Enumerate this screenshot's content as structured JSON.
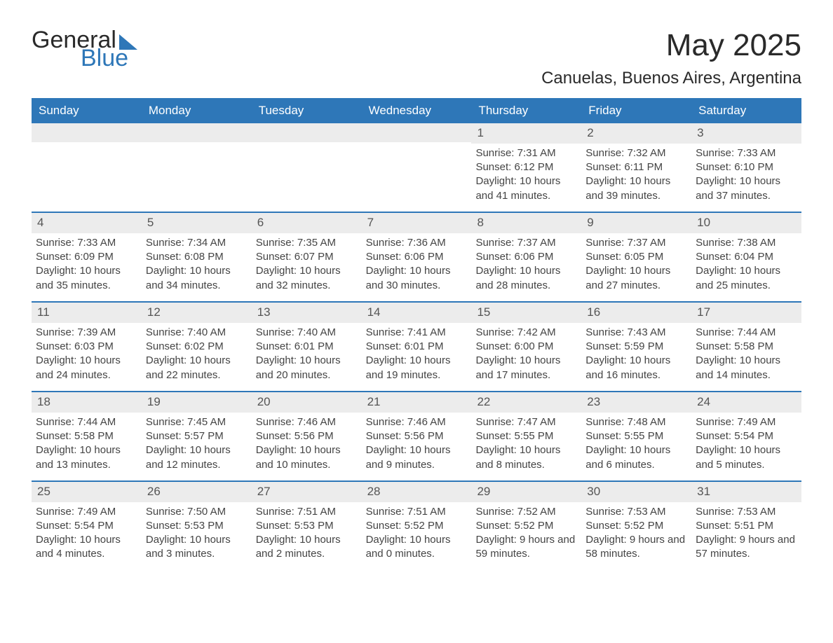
{
  "logo": {
    "text1": "General",
    "text2": "Blue"
  },
  "title": "May 2025",
  "location": "Canuelas, Buenos Aires, Argentina",
  "colors": {
    "header_bg": "#2e77b8",
    "header_text": "#ffffff",
    "daynum_bg": "#ececec",
    "border": "#2e77b8",
    "text": "#444444"
  },
  "weekdays": [
    "Sunday",
    "Monday",
    "Tuesday",
    "Wednesday",
    "Thursday",
    "Friday",
    "Saturday"
  ],
  "weeks": [
    [
      {
        "empty": true
      },
      {
        "empty": true
      },
      {
        "empty": true
      },
      {
        "empty": true
      },
      {
        "n": "1",
        "sunrise": "Sunrise: 7:31 AM",
        "sunset": "Sunset: 6:12 PM",
        "daylight": "Daylight: 10 hours and 41 minutes."
      },
      {
        "n": "2",
        "sunrise": "Sunrise: 7:32 AM",
        "sunset": "Sunset: 6:11 PM",
        "daylight": "Daylight: 10 hours and 39 minutes."
      },
      {
        "n": "3",
        "sunrise": "Sunrise: 7:33 AM",
        "sunset": "Sunset: 6:10 PM",
        "daylight": "Daylight: 10 hours and 37 minutes."
      }
    ],
    [
      {
        "n": "4",
        "sunrise": "Sunrise: 7:33 AM",
        "sunset": "Sunset: 6:09 PM",
        "daylight": "Daylight: 10 hours and 35 minutes."
      },
      {
        "n": "5",
        "sunrise": "Sunrise: 7:34 AM",
        "sunset": "Sunset: 6:08 PM",
        "daylight": "Daylight: 10 hours and 34 minutes."
      },
      {
        "n": "6",
        "sunrise": "Sunrise: 7:35 AM",
        "sunset": "Sunset: 6:07 PM",
        "daylight": "Daylight: 10 hours and 32 minutes."
      },
      {
        "n": "7",
        "sunrise": "Sunrise: 7:36 AM",
        "sunset": "Sunset: 6:06 PM",
        "daylight": "Daylight: 10 hours and 30 minutes."
      },
      {
        "n": "8",
        "sunrise": "Sunrise: 7:37 AM",
        "sunset": "Sunset: 6:06 PM",
        "daylight": "Daylight: 10 hours and 28 minutes."
      },
      {
        "n": "9",
        "sunrise": "Sunrise: 7:37 AM",
        "sunset": "Sunset: 6:05 PM",
        "daylight": "Daylight: 10 hours and 27 minutes."
      },
      {
        "n": "10",
        "sunrise": "Sunrise: 7:38 AM",
        "sunset": "Sunset: 6:04 PM",
        "daylight": "Daylight: 10 hours and 25 minutes."
      }
    ],
    [
      {
        "n": "11",
        "sunrise": "Sunrise: 7:39 AM",
        "sunset": "Sunset: 6:03 PM",
        "daylight": "Daylight: 10 hours and 24 minutes."
      },
      {
        "n": "12",
        "sunrise": "Sunrise: 7:40 AM",
        "sunset": "Sunset: 6:02 PM",
        "daylight": "Daylight: 10 hours and 22 minutes."
      },
      {
        "n": "13",
        "sunrise": "Sunrise: 7:40 AM",
        "sunset": "Sunset: 6:01 PM",
        "daylight": "Daylight: 10 hours and 20 minutes."
      },
      {
        "n": "14",
        "sunrise": "Sunrise: 7:41 AM",
        "sunset": "Sunset: 6:01 PM",
        "daylight": "Daylight: 10 hours and 19 minutes."
      },
      {
        "n": "15",
        "sunrise": "Sunrise: 7:42 AM",
        "sunset": "Sunset: 6:00 PM",
        "daylight": "Daylight: 10 hours and 17 minutes."
      },
      {
        "n": "16",
        "sunrise": "Sunrise: 7:43 AM",
        "sunset": "Sunset: 5:59 PM",
        "daylight": "Daylight: 10 hours and 16 minutes."
      },
      {
        "n": "17",
        "sunrise": "Sunrise: 7:44 AM",
        "sunset": "Sunset: 5:58 PM",
        "daylight": "Daylight: 10 hours and 14 minutes."
      }
    ],
    [
      {
        "n": "18",
        "sunrise": "Sunrise: 7:44 AM",
        "sunset": "Sunset: 5:58 PM",
        "daylight": "Daylight: 10 hours and 13 minutes."
      },
      {
        "n": "19",
        "sunrise": "Sunrise: 7:45 AM",
        "sunset": "Sunset: 5:57 PM",
        "daylight": "Daylight: 10 hours and 12 minutes."
      },
      {
        "n": "20",
        "sunrise": "Sunrise: 7:46 AM",
        "sunset": "Sunset: 5:56 PM",
        "daylight": "Daylight: 10 hours and 10 minutes."
      },
      {
        "n": "21",
        "sunrise": "Sunrise: 7:46 AM",
        "sunset": "Sunset: 5:56 PM",
        "daylight": "Daylight: 10 hours and 9 minutes."
      },
      {
        "n": "22",
        "sunrise": "Sunrise: 7:47 AM",
        "sunset": "Sunset: 5:55 PM",
        "daylight": "Daylight: 10 hours and 8 minutes."
      },
      {
        "n": "23",
        "sunrise": "Sunrise: 7:48 AM",
        "sunset": "Sunset: 5:55 PM",
        "daylight": "Daylight: 10 hours and 6 minutes."
      },
      {
        "n": "24",
        "sunrise": "Sunrise: 7:49 AM",
        "sunset": "Sunset: 5:54 PM",
        "daylight": "Daylight: 10 hours and 5 minutes."
      }
    ],
    [
      {
        "n": "25",
        "sunrise": "Sunrise: 7:49 AM",
        "sunset": "Sunset: 5:54 PM",
        "daylight": "Daylight: 10 hours and 4 minutes."
      },
      {
        "n": "26",
        "sunrise": "Sunrise: 7:50 AM",
        "sunset": "Sunset: 5:53 PM",
        "daylight": "Daylight: 10 hours and 3 minutes."
      },
      {
        "n": "27",
        "sunrise": "Sunrise: 7:51 AM",
        "sunset": "Sunset: 5:53 PM",
        "daylight": "Daylight: 10 hours and 2 minutes."
      },
      {
        "n": "28",
        "sunrise": "Sunrise: 7:51 AM",
        "sunset": "Sunset: 5:52 PM",
        "daylight": "Daylight: 10 hours and 0 minutes."
      },
      {
        "n": "29",
        "sunrise": "Sunrise: 7:52 AM",
        "sunset": "Sunset: 5:52 PM",
        "daylight": "Daylight: 9 hours and 59 minutes."
      },
      {
        "n": "30",
        "sunrise": "Sunrise: 7:53 AM",
        "sunset": "Sunset: 5:52 PM",
        "daylight": "Daylight: 9 hours and 58 minutes."
      },
      {
        "n": "31",
        "sunrise": "Sunrise: 7:53 AM",
        "sunset": "Sunset: 5:51 PM",
        "daylight": "Daylight: 9 hours and 57 minutes."
      }
    ]
  ]
}
